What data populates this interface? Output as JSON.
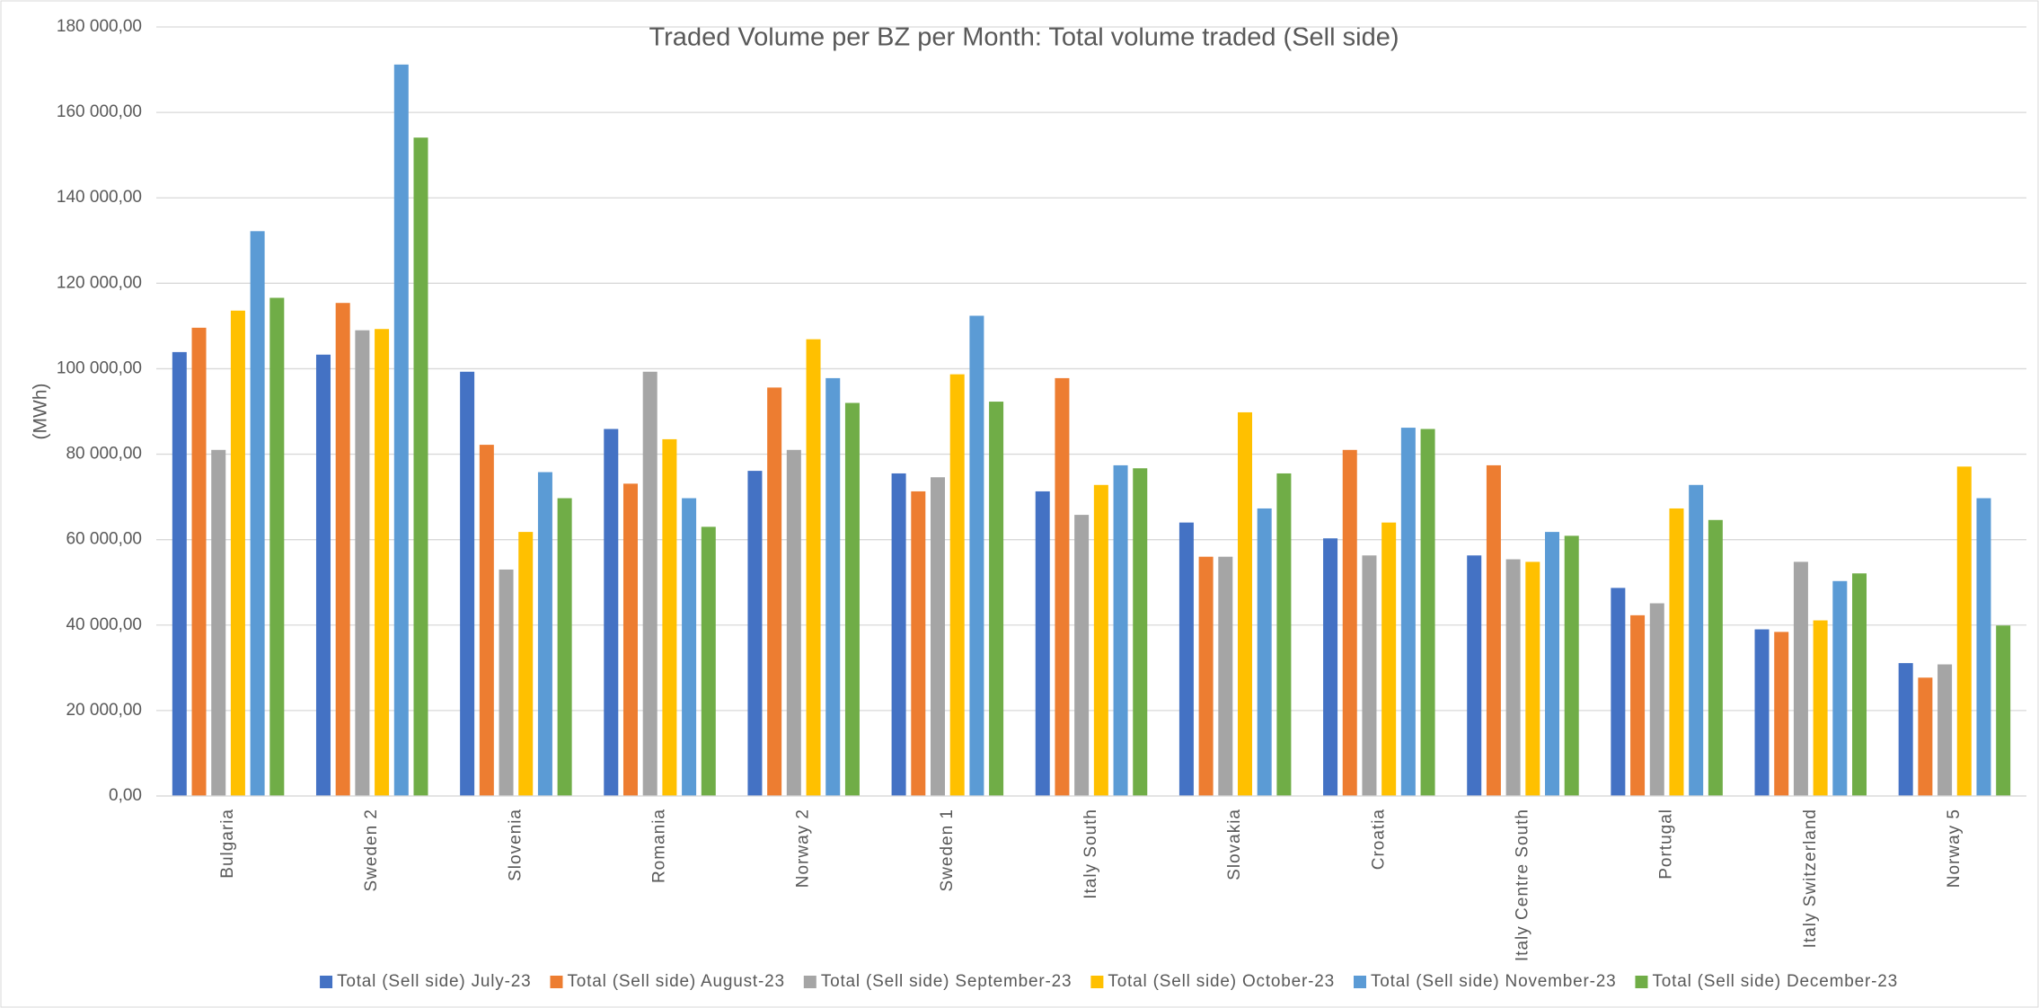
{
  "chart_data": {
    "type": "bar",
    "title": "Traded Volume per BZ per Month: Total volume traded (Sell side)",
    "y_label": "(MWh)",
    "categories": [
      "Bulgaria",
      "Sweden 2",
      "Slovenia",
      "Romania",
      "Norway 2",
      "Sweden 1",
      "Italy South",
      "Slovakia",
      "Croatia",
      "Italy Centre South",
      "Portugal",
      "Italy Switzerland",
      "Norway 5"
    ],
    "series": [
      {
        "name": "Total (Sell side) July-23",
        "color": "#4472c4",
        "values": [
          103900,
          103300,
          99300,
          85900,
          76100,
          75500,
          71300,
          64000,
          60300,
          56300,
          48700,
          39000,
          31100
        ]
      },
      {
        "name": "Total (Sell side) August-23",
        "color": "#ed7d31",
        "values": [
          109600,
          115400,
          82200,
          73100,
          95600,
          71300,
          97800,
          56000,
          81000,
          77400,
          42300,
          38400,
          27700
        ]
      },
      {
        "name": "Total (Sell side) September-23",
        "color": "#a5a5a5",
        "values": [
          81000,
          109000,
          53000,
          99300,
          81000,
          74600,
          65800,
          56000,
          56300,
          55400,
          45100,
          54800,
          30800
        ]
      },
      {
        "name": "Total (Sell side) October-23",
        "color": "#ffc000",
        "values": [
          113600,
          109300,
          61800,
          83500,
          106900,
          98700,
          72800,
          89800,
          64000,
          54800,
          67300,
          41100,
          77100
        ]
      },
      {
        "name": "Total (Sell side) November-23",
        "color": "#5b9bd5",
        "values": [
          132200,
          171200,
          75800,
          69700,
          97800,
          112400,
          77400,
          67300,
          86200,
          61800,
          72800,
          50300,
          69700
        ]
      },
      {
        "name": "Total (Sell side) December-23",
        "color": "#70ad47",
        "values": [
          116600,
          154100,
          69700,
          63000,
          92000,
          92300,
          76700,
          75500,
          85900,
          60900,
          64600,
          52100,
          39900
        ]
      }
    ],
    "ylim": [
      0,
      180000
    ],
    "yticks": [
      {
        "value": 0,
        "label": "0,00"
      },
      {
        "value": 20000,
        "label": "20 000,00"
      },
      {
        "value": 40000,
        "label": "40 000,00"
      },
      {
        "value": 60000,
        "label": "60 000,00"
      },
      {
        "value": 80000,
        "label": "80 000,00"
      },
      {
        "value": 100000,
        "label": "100 000,00"
      },
      {
        "value": 120000,
        "label": "120 000,00"
      },
      {
        "value": 140000,
        "label": "140 000,00"
      },
      {
        "value": 160000,
        "label": "160 000,00"
      },
      {
        "value": 180000,
        "label": "180 000,00"
      }
    ],
    "grid": true,
    "legend": "bottom"
  }
}
